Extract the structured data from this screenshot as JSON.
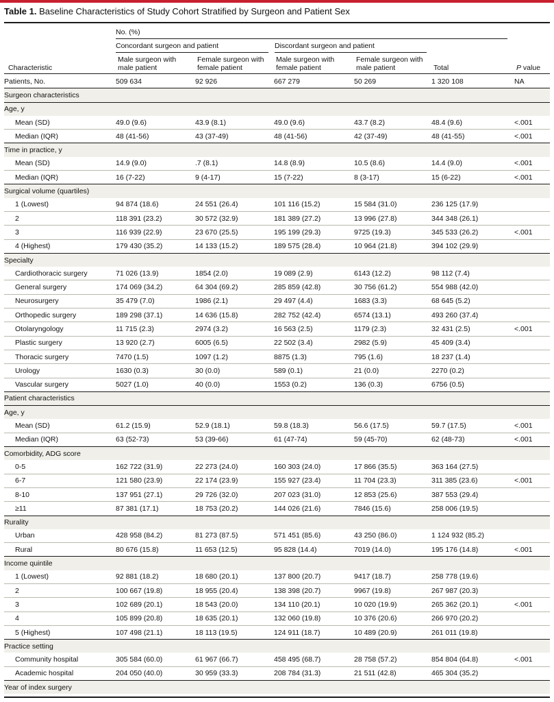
{
  "title": {
    "prefix": "Table 1.",
    "text": " Baseline Characteristics of Study Cohort Stratified by Surgeon and Patient Sex"
  },
  "header": {
    "no_pct": "No. (%)",
    "concordant": "Concordant surgeon and patient",
    "discordant": "Discordant surgeon and patient",
    "characteristic": "Characteristic",
    "col1": [
      "Male surgeon with",
      "male patient"
    ],
    "col2": [
      "Female surgeon with",
      "female patient"
    ],
    "col3": [
      "Male surgeon with",
      "female patient"
    ],
    "col4": [
      "Female surgeon with",
      "male patient"
    ],
    "total": "Total",
    "p_value_italic": "P",
    "p_value_rest": " value"
  },
  "rows": [
    {
      "kind": "patients",
      "label": "Patients, No.",
      "v": [
        "509 634",
        "92 926",
        "667 279",
        "50 269",
        "1 320 108"
      ],
      "p": "NA"
    },
    {
      "kind": "section",
      "label": "Surgeon characteristics"
    },
    {
      "kind": "group",
      "label": "Age, y"
    },
    {
      "kind": "data",
      "label": "Mean (SD)",
      "v": [
        "49.0 (9.6)",
        "43.9 (8.1)",
        "49.0 (9.6)",
        "43.7 (8.2)",
        "48.4 (9.6)"
      ],
      "p": "<.001"
    },
    {
      "kind": "data",
      "label": "Median (IQR)",
      "v": [
        "48 (41-56)",
        "43 (37-49)",
        "48 (41-56)",
        "42 (37-49)",
        "48 (41-55)"
      ],
      "p": "<.001"
    },
    {
      "kind": "group",
      "label": "Time in practice, y"
    },
    {
      "kind": "data",
      "label": "Mean (SD)",
      "v": [
        "14.9 (9.0)",
        ".7 (8.1)",
        "14.8 (8.9)",
        "10.5 (8.6)",
        "14.4 (9.0)"
      ],
      "p": "<.001"
    },
    {
      "kind": "data",
      "label": "Median (IQR)",
      "v": [
        "16 (7-22)",
        "9 (4-17)",
        "15 (7-22)",
        "8 (3-17)",
        "15 (6-22)"
      ],
      "p": "<.001"
    },
    {
      "kind": "group",
      "label": "Surgical volume (quartiles)"
    },
    {
      "kind": "data",
      "label": "1 (Lowest)",
      "v": [
        "94 874 (18.6)",
        "24 551 (26.4)",
        "101 116 (15.2)",
        "15 584 (31.0)",
        "236 125 (17.9)"
      ],
      "p": ""
    },
    {
      "kind": "data",
      "label": "2",
      "v": [
        "118 391 (23.2)",
        "30 572 (32.9)",
        "181 389 (27.2)",
        "13 996 (27.8)",
        "344 348 (26.1)"
      ],
      "p": ""
    },
    {
      "kind": "data",
      "label": "3",
      "v": [
        "116 939 (22.9)",
        "23 670 (25.5)",
        "195 199 (29.3)",
        "9725 (19.3)",
        "345 533 (26.2)"
      ],
      "p": "<.001"
    },
    {
      "kind": "data",
      "label": "4 (Highest)",
      "v": [
        "179 430 (35.2)",
        "14 133 (15.2)",
        "189 575 (28.4)",
        "10 964 (21.8)",
        "394 102 (29.9)"
      ],
      "p": ""
    },
    {
      "kind": "group",
      "label": "Specialty"
    },
    {
      "kind": "data",
      "label": "Cardiothoracic surgery",
      "v": [
        "71 026 (13.9)",
        "1854 (2.0)",
        "19 089 (2.9)",
        "6143 (12.2)",
        "98 112 (7.4)"
      ],
      "p": ""
    },
    {
      "kind": "data",
      "label": "General surgery",
      "v": [
        "174 069 (34.2)",
        "64 304 (69.2)",
        "285 859 (42.8)",
        "30 756 (61.2)",
        "554 988 (42.0)"
      ],
      "p": ""
    },
    {
      "kind": "data",
      "label": "Neurosurgery",
      "v": [
        "35 479 (7.0)",
        "1986 (2.1)",
        "29 497 (4.4)",
        "1683 (3.3)",
        "68 645 (5.2)"
      ],
      "p": ""
    },
    {
      "kind": "data",
      "label": "Orthopedic surgery",
      "v": [
        "189 298 (37.1)",
        "14 636 (15.8)",
        "282 752 (42.4)",
        "6574 (13.1)",
        "493 260 (37.4)"
      ],
      "p": ""
    },
    {
      "kind": "data",
      "label": "Otolaryngology",
      "v": [
        "11 715 (2.3)",
        "2974 (3.2)",
        "16 563 (2.5)",
        "1179 (2.3)",
        "32 431 (2.5)"
      ],
      "p": "<.001"
    },
    {
      "kind": "data",
      "label": "Plastic surgery",
      "v": [
        "13 920 (2.7)",
        "6005 (6.5)",
        "22 502 (3.4)",
        "2982 (5.9)",
        "45 409 (3.4)"
      ],
      "p": ""
    },
    {
      "kind": "data",
      "label": "Thoracic surgery",
      "v": [
        "7470 (1.5)",
        "1097 (1.2)",
        "8875 (1.3)",
        "795 (1.6)",
        "18 237 (1.4)"
      ],
      "p": ""
    },
    {
      "kind": "data",
      "label": "Urology",
      "v": [
        "1630 (0.3)",
        "30 (0.0)",
        "589 (0.1)",
        "21 (0.0)",
        "2270 (0.2)"
      ],
      "p": ""
    },
    {
      "kind": "data",
      "label": "Vascular surgery",
      "v": [
        "5027 (1.0)",
        "40 (0.0)",
        "1553 (0.2)",
        "136 (0.3)",
        "6756 (0.5)"
      ],
      "p": ""
    },
    {
      "kind": "section",
      "label": "Patient characteristics"
    },
    {
      "kind": "group",
      "label": "Age, y"
    },
    {
      "kind": "data",
      "label": "Mean (SD)",
      "v": [
        "61.2 (15.9)",
        "52.9 (18.1)",
        "59.8 (18.3)",
        "56.6 (17.5)",
        "59.7 (17.5)"
      ],
      "p": "<.001"
    },
    {
      "kind": "data",
      "label": "Median (IQR)",
      "v": [
        "63 (52-73)",
        "53 (39-66)",
        "61 (47-74)",
        "59 (45-70)",
        "62 (48-73)"
      ],
      "p": "<.001"
    },
    {
      "kind": "group",
      "label": "Comorbidity, ADG score"
    },
    {
      "kind": "data",
      "label": "0-5",
      "v": [
        "162 722 (31.9)",
        "22 273 (24.0)",
        "160 303 (24.0)",
        "17 866 (35.5)",
        "363 164 (27.5)"
      ],
      "p": ""
    },
    {
      "kind": "data",
      "label": "6-7",
      "v": [
        "121 580 (23.9)",
        "22 174 (23.9)",
        "155 927 (23.4)",
        "11 704 (23.3)",
        "311 385 (23.6)"
      ],
      "p": "<.001"
    },
    {
      "kind": "data",
      "label": "8-10",
      "v": [
        "137 951 (27.1)",
        "29 726 (32.0)",
        "207 023 (31.0)",
        "12 853 (25.6)",
        "387 553 (29.4)"
      ],
      "p": ""
    },
    {
      "kind": "data",
      "label": "≥11",
      "v": [
        "87 381 (17.1)",
        "18 753 (20.2)",
        "144 026 (21.6)",
        "7846 (15.6)",
        "258 006 (19.5)"
      ],
      "p": ""
    },
    {
      "kind": "group",
      "label": "Rurality"
    },
    {
      "kind": "data",
      "label": "Urban",
      "v": [
        "428 958 (84.2)",
        "81 273 (87.5)",
        "571 451 (85.6)",
        "43 250 (86.0)",
        "1 124 932 (85.2)"
      ],
      "p": ""
    },
    {
      "kind": "data",
      "label": "Rural",
      "v": [
        "80 676 (15.8)",
        "11 653 (12.5)",
        "95 828 (14.4)",
        "7019 (14.0)",
        "195 176 (14.8)"
      ],
      "p": "<.001"
    },
    {
      "kind": "group",
      "label": "Income quintile"
    },
    {
      "kind": "data",
      "label": "1 (Lowest)",
      "v": [
        "92 881 (18.2)",
        "18 680 (20.1)",
        "137 800 (20.7)",
        "9417 (18.7)",
        "258 778 (19.6)"
      ],
      "p": ""
    },
    {
      "kind": "data",
      "label": "2",
      "v": [
        "100 667 (19.8)",
        "18 955 (20.4)",
        "138 398 (20.7)",
        "9967 (19.8)",
        "267 987 (20.3)"
      ],
      "p": ""
    },
    {
      "kind": "data",
      "label": "3",
      "v": [
        "102 689 (20.1)",
        "18 543 (20.0)",
        "134 110 (20.1)",
        "10 020 (19.9)",
        "265 362 (20.1)"
      ],
      "p": "<.001"
    },
    {
      "kind": "data",
      "label": "4",
      "v": [
        "105 899 (20.8)",
        "18 635 (20.1)",
        "132 060 (19.8)",
        "10 376 (20.6)",
        "266 970 (20.2)"
      ],
      "p": ""
    },
    {
      "kind": "data",
      "label": "5 (Highest)",
      "v": [
        "107 498 (21.1)",
        "18 113 (19.5)",
        "124 911 (18.7)",
        "10 489 (20.9)",
        "261 011 (19.8)"
      ],
      "p": ""
    },
    {
      "kind": "group",
      "label": "Practice setting"
    },
    {
      "kind": "data",
      "label": "Community hospital",
      "v": [
        "305 584 (60.0)",
        "61 967 (66.7)",
        "458 495 (68.7)",
        "28 758 (57.2)",
        "854 804 (64.8)"
      ],
      "p": "<.001"
    },
    {
      "kind": "data",
      "label": "Academic hospital",
      "v": [
        "204 050 (40.0)",
        "30 959 (33.3)",
        "208 784 (31.3)",
        "21 511 (42.8)",
        "465 304 (35.2)"
      ],
      "p": ""
    },
    {
      "kind": "group",
      "label": "Year of index surgery"
    }
  ],
  "colors": {
    "accent": "#c8202f",
    "band": "#f0efe9",
    "rule": "#1a1a1a"
  }
}
